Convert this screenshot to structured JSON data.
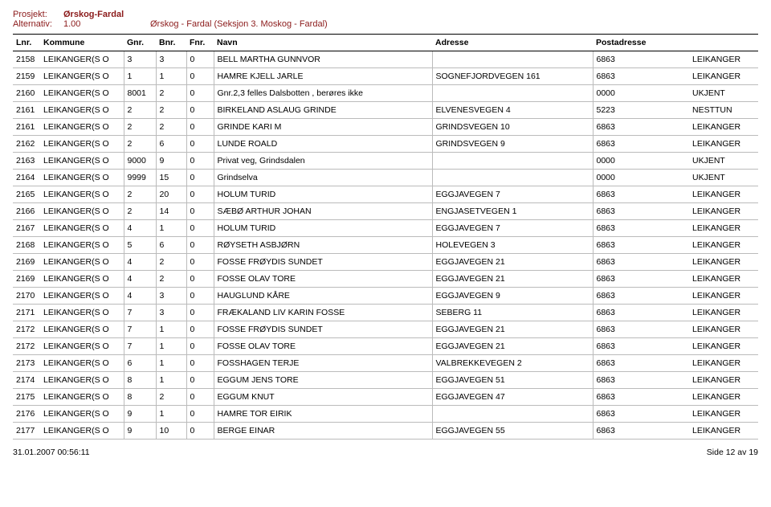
{
  "header": {
    "l1_label": "Prosjekt:",
    "l1_val": "Ørskog-Fardal",
    "l2_label": "Alternativ:",
    "l2_v1": "1.00",
    "l2_v2": "Ørskog - Fardal (Seksjon 3.  Moskog - Fardal)"
  },
  "columns": [
    "Lnr.",
    "Kommune",
    "Gnr.",
    "Bnr.",
    "Fnr.",
    "Navn",
    "Adresse",
    "Postadresse"
  ],
  "rows": [
    [
      "2158",
      "LEIKANGER(S O",
      "3",
      "3",
      "0",
      "BELL MARTHA GUNNVOR",
      "",
      "6863",
      "LEIKANGER"
    ],
    [
      "2159",
      "LEIKANGER(S O",
      "1",
      "1",
      "0",
      "HAMRE KJELL JARLE",
      "SOGNEFJORDVEGEN 161",
      "6863",
      "LEIKANGER"
    ],
    [
      "2160",
      "LEIKANGER(S O",
      "8001",
      "2",
      "0",
      "Gnr.2,3 felles Dalsbotten , berøres ikke",
      "",
      "0000",
      "UKJENT"
    ],
    [
      "2161",
      "LEIKANGER(S O",
      "2",
      "2",
      "0",
      "BIRKELAND ASLAUG GRINDE",
      "ELVENESVEGEN 4",
      "5223",
      "NESTTUN"
    ],
    [
      "2161",
      "LEIKANGER(S O",
      "2",
      "2",
      "0",
      "GRINDE KARI M",
      "GRINDSVEGEN 10",
      "6863",
      "LEIKANGER"
    ],
    [
      "2162",
      "LEIKANGER(S O",
      "2",
      "6",
      "0",
      "LUNDE ROALD",
      "GRINDSVEGEN 9",
      "6863",
      "LEIKANGER"
    ],
    [
      "2163",
      "LEIKANGER(S O",
      "9000",
      "9",
      "0",
      "Privat veg, Grindsdalen",
      "",
      "0000",
      "UKJENT"
    ],
    [
      "2164",
      "LEIKANGER(S O",
      "9999",
      "15",
      "0",
      "Grindselva",
      "",
      "0000",
      "UKJENT"
    ],
    [
      "2165",
      "LEIKANGER(S O",
      "2",
      "20",
      "0",
      "HOLUM TURID",
      "EGGJAVEGEN 7",
      "6863",
      "LEIKANGER"
    ],
    [
      "2166",
      "LEIKANGER(S O",
      "2",
      "14",
      "0",
      "SÆBØ ARTHUR JOHAN",
      "ENGJASETVEGEN 1",
      "6863",
      "LEIKANGER"
    ],
    [
      "2167",
      "LEIKANGER(S O",
      "4",
      "1",
      "0",
      "HOLUM TURID",
      "EGGJAVEGEN 7",
      "6863",
      "LEIKANGER"
    ],
    [
      "2168",
      "LEIKANGER(S O",
      "5",
      "6",
      "0",
      "RØYSETH ASBJØRN",
      "HOLEVEGEN 3",
      "6863",
      "LEIKANGER"
    ],
    [
      "2169",
      "LEIKANGER(S O",
      "4",
      "2",
      "0",
      "FOSSE FRØYDIS SUNDET",
      "EGGJAVEGEN 21",
      "6863",
      "LEIKANGER"
    ],
    [
      "2169",
      "LEIKANGER(S O",
      "4",
      "2",
      "0",
      "FOSSE OLAV TORE",
      "EGGJAVEGEN 21",
      "6863",
      "LEIKANGER"
    ],
    [
      "2170",
      "LEIKANGER(S O",
      "4",
      "3",
      "0",
      "HAUGLUND KÅRE",
      "EGGJAVEGEN 9",
      "6863",
      "LEIKANGER"
    ],
    [
      "2171",
      "LEIKANGER(S O",
      "7",
      "3",
      "0",
      "FRÆKALAND LIV KARIN FOSSE",
      "SEBERG 11",
      "6863",
      "LEIKANGER"
    ],
    [
      "2172",
      "LEIKANGER(S O",
      "7",
      "1",
      "0",
      "FOSSE FRØYDIS SUNDET",
      "EGGJAVEGEN 21",
      "6863",
      "LEIKANGER"
    ],
    [
      "2172",
      "LEIKANGER(S O",
      "7",
      "1",
      "0",
      "FOSSE OLAV TORE",
      "EGGJAVEGEN 21",
      "6863",
      "LEIKANGER"
    ],
    [
      "2173",
      "LEIKANGER(S O",
      "6",
      "1",
      "0",
      "FOSSHAGEN TERJE",
      "VALBREKKEVEGEN 2",
      "6863",
      "LEIKANGER"
    ],
    [
      "2174",
      "LEIKANGER(S O",
      "8",
      "1",
      "0",
      "EGGUM JENS TORE",
      "EGGJAVEGEN 51",
      "6863",
      "LEIKANGER"
    ],
    [
      "2175",
      "LEIKANGER(S O",
      "8",
      "2",
      "0",
      "EGGUM KNUT",
      "EGGJAVEGEN 47",
      "6863",
      "LEIKANGER"
    ],
    [
      "2176",
      "LEIKANGER(S O",
      "9",
      "1",
      "0",
      "HAMRE TOR EIRIK",
      "",
      "6863",
      "LEIKANGER"
    ],
    [
      "2177",
      "LEIKANGER(S O",
      "9",
      "10",
      "0",
      "BERGE EINAR",
      "EGGJAVEGEN 55",
      "6863",
      "LEIKANGER"
    ]
  ],
  "footer": {
    "left": "31.01.2007 00:56:11",
    "right": "Side 12 av 19"
  }
}
